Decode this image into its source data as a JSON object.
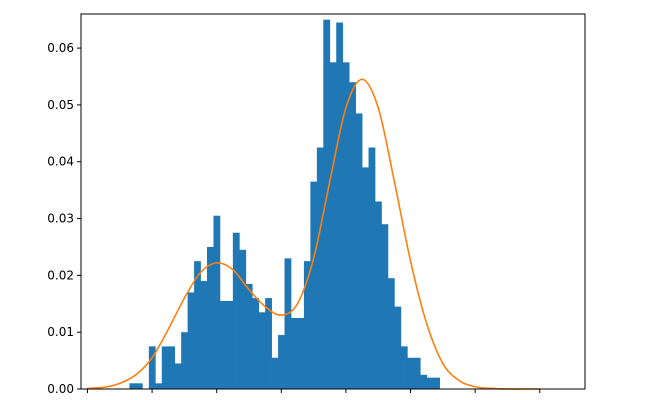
{
  "chart_data": {
    "type": "bar",
    "title": "",
    "xlabel": "",
    "ylabel": "",
    "xlim": [
      -4.2,
      11.4
    ],
    "ylim": [
      0,
      0.066
    ],
    "grid": false,
    "legend": "none",
    "x_ticks": [
      -4,
      -2,
      0,
      2,
      4,
      6,
      8,
      10
    ],
    "x_tick_labels": [
      "",
      "",
      "",
      "",
      "",
      "",
      "",
      ""
    ],
    "y_ticks": [
      0.0,
      0.01,
      0.02,
      0.03,
      0.04,
      0.05,
      0.06
    ],
    "y_tick_labels": [
      "0.00",
      "0.01",
      "0.02",
      "0.03",
      "0.04",
      "0.05",
      "0.06"
    ],
    "histogram": {
      "color": "#1f77b4",
      "bin_edges": [
        -2.7,
        -2.5,
        -2.3,
        -2.1,
        -1.9,
        -1.7,
        -1.5,
        -1.3,
        -1.1,
        -0.9,
        -0.7,
        -0.5,
        -0.3,
        -0.1,
        0.1,
        0.3,
        0.5,
        0.7,
        0.9,
        1.1,
        1.3,
        1.5,
        1.7,
        1.9,
        2.1,
        2.3,
        2.5,
        2.7,
        2.9,
        3.1,
        3.3,
        3.5,
        3.7,
        3.9,
        4.1,
        4.3,
        4.5,
        4.7,
        4.9,
        5.1,
        5.3,
        5.5,
        5.7,
        5.9,
        6.1,
        6.3,
        6.5,
        6.7,
        6.9,
        7.1,
        7.3,
        7.5,
        7.7,
        7.9,
        8.1
      ],
      "densities": [
        0.001,
        0.001,
        0.0,
        0.0075,
        0.001,
        0.0075,
        0.0075,
        0.0045,
        0.01,
        0.017,
        0.0225,
        0.019,
        0.025,
        0.0305,
        0.0155,
        0.0155,
        0.0275,
        0.0245,
        0.0185,
        0.016,
        0.0135,
        0.016,
        0.0055,
        0.0095,
        0.023,
        0.0125,
        0.0125,
        0.0225,
        0.0365,
        0.0425,
        0.065,
        0.0575,
        0.0645,
        0.0575,
        0.054,
        0.0485,
        0.039,
        0.0425,
        0.033,
        0.029,
        0.0195,
        0.0145,
        0.0075,
        0.0055,
        0.0055,
        0.0025,
        0.002,
        0.002,
        0.0,
        0.0,
        0.0,
        0.0,
        0.0,
        0.0
      ]
    },
    "series": [
      {
        "type": "line",
        "color": "#ff7f0e",
        "x": [
          -4,
          -3.5,
          -3,
          -2.5,
          -2,
          -1.5,
          -1,
          -0.5,
          0,
          0.5,
          1,
          1.5,
          2,
          2.5,
          3,
          3.5,
          4,
          4.5,
          5,
          5.5,
          6,
          6.5,
          7,
          7.5,
          8,
          8.5,
          9,
          9.5,
          10
        ],
        "y": [
          0.0001,
          0.0003,
          0.001,
          0.0025,
          0.0055,
          0.0105,
          0.016,
          0.0205,
          0.0222,
          0.021,
          0.0175,
          0.0145,
          0.013,
          0.015,
          0.023,
          0.0365,
          0.0495,
          0.0545,
          0.0495,
          0.0365,
          0.0225,
          0.0115,
          0.0045,
          0.0015,
          0.0004,
          0.0001,
          0.0,
          0.0,
          0.0
        ]
      }
    ]
  }
}
